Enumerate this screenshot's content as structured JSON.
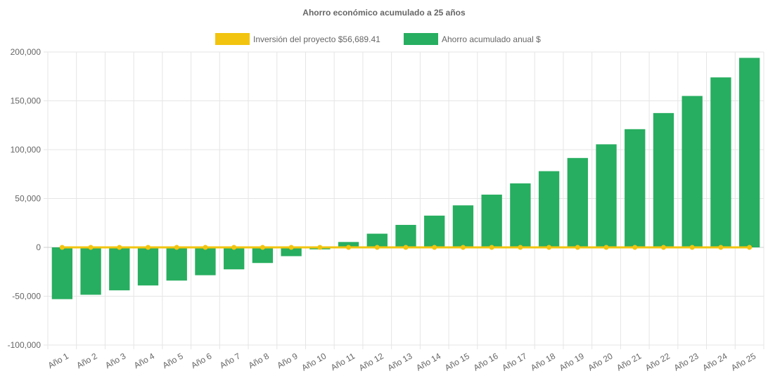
{
  "chart_data": {
    "type": "bar",
    "title": "Ahorro económico acumulado a 25 años",
    "categories": [
      "Año 1",
      "Año 2",
      "Año 3",
      "Año 4",
      "Año 5",
      "Año 6",
      "Año 7",
      "Año 8",
      "Año 9",
      "Año 10",
      "Año 11",
      "Año 12",
      "Año 13",
      "Año 14",
      "Año 15",
      "Año 16",
      "Año 17",
      "Año 18",
      "Año 19",
      "Año 20",
      "Año 21",
      "Año 22",
      "Año 23",
      "Año 24",
      "Año 25"
    ],
    "series": [
      {
        "name": "Inversión del proyecto $56,689.41",
        "type": "line",
        "color": "#f2c40f",
        "values": [
          0,
          0,
          0,
          0,
          0,
          0,
          0,
          0,
          0,
          0,
          0,
          0,
          0,
          0,
          0,
          0,
          0,
          0,
          0,
          0,
          0,
          0,
          0,
          0,
          0
        ]
      },
      {
        "name": "Ahorro acumulado anual $",
        "type": "bar",
        "color": "#27ae60",
        "values": [
          -53000,
          -48500,
          -44000,
          -39000,
          -34000,
          -28500,
          -22500,
          -16000,
          -9000,
          -2000,
          5500,
          14000,
          23000,
          32500,
          43000,
          54000,
          65500,
          78000,
          91500,
          105500,
          121000,
          137500,
          155000,
          174000,
          194000
        ]
      }
    ],
    "ylim": [
      -100000,
      200000
    ],
    "yticks": [
      -100000,
      -50000,
      0,
      50000,
      100000,
      150000,
      200000
    ],
    "ytick_labels": [
      "-100,000",
      "-50,000",
      "0",
      "50,000",
      "100,000",
      "150,000",
      "200,000"
    ],
    "legend": "top",
    "grid": true,
    "xlabel": "",
    "ylabel": ""
  }
}
